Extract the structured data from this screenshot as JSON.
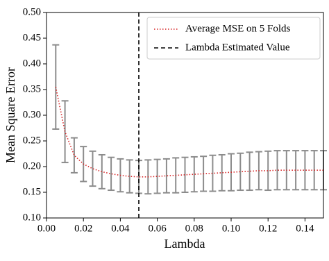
{
  "chart_data": {
    "type": "line",
    "x_label": "Lambda",
    "y_label": "Mean Square Error",
    "x": [
      0.005,
      0.01,
      0.015,
      0.02,
      0.025,
      0.03,
      0.035,
      0.04,
      0.045,
      0.05,
      0.055,
      0.06,
      0.065,
      0.07,
      0.075,
      0.08,
      0.085,
      0.09,
      0.095,
      0.1,
      0.105,
      0.11,
      0.115,
      0.12,
      0.125,
      0.13,
      0.135,
      0.14,
      0.145,
      0.15
    ],
    "series": [
      {
        "name": "Average MSE on 5 Folds",
        "color": "#d62728",
        "error_color": "#8c8c8c",
        "values": [
          0.355,
          0.268,
          0.222,
          0.205,
          0.196,
          0.19,
          0.186,
          0.183,
          0.181,
          0.18,
          0.18,
          0.181,
          0.182,
          0.183,
          0.184,
          0.185,
          0.186,
          0.187,
          0.188,
          0.189,
          0.19,
          0.191,
          0.192,
          0.192,
          0.193,
          0.193,
          0.193,
          0.193,
          0.193,
          0.193
        ],
        "errors": [
          0.082,
          0.06,
          0.034,
          0.034,
          0.034,
          0.033,
          0.032,
          0.032,
          0.032,
          0.032,
          0.033,
          0.033,
          0.033,
          0.034,
          0.034,
          0.034,
          0.034,
          0.035,
          0.035,
          0.036,
          0.036,
          0.037,
          0.037,
          0.038,
          0.038,
          0.038,
          0.038,
          0.038,
          0.038,
          0.038
        ]
      }
    ],
    "vline": {
      "name": "Lambda Estimated Value",
      "x": 0.05,
      "color": "#000000"
    },
    "xlim": [
      0,
      0.15
    ],
    "ylim": [
      0.1,
      0.5
    ],
    "xticks": [
      {
        "value": 0,
        "label": "0.00"
      },
      0.02,
      0.04,
      0.06,
      0.08,
      {
        "value": 0.1,
        "label": "0.10"
      },
      0.12,
      0.14
    ],
    "yticks": [
      {
        "value": 0.1,
        "label": "0.10"
      },
      0.15,
      {
        "value": 0.2,
        "label": "0.20"
      },
      0.25,
      {
        "value": 0.3,
        "label": "0.30"
      },
      0.35,
      {
        "value": 0.4,
        "label": "0.40"
      },
      0.45,
      {
        "value": 0.5,
        "label": "0.50"
      }
    ],
    "legend": "upper right"
  }
}
